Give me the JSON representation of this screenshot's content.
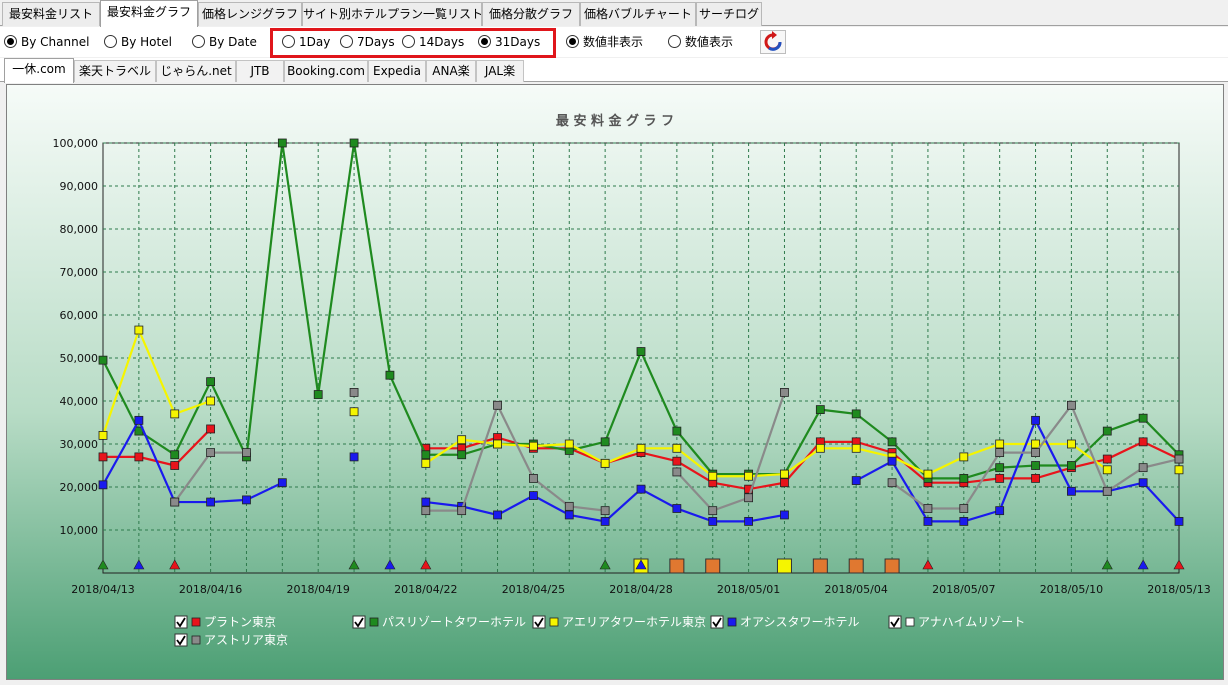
{
  "main_tabs": [
    {
      "label": "最安料金リスト",
      "active": false
    },
    {
      "label": "最安料金グラフ",
      "active": true
    },
    {
      "label": "価格レンジグラフ",
      "active": false
    },
    {
      "label": "サイト別ホテルプラン一覧リスト",
      "active": false
    },
    {
      "label": "価格分散グラフ",
      "active": false
    },
    {
      "label": "価格バブルチャート",
      "active": false
    },
    {
      "label": "サーチログ",
      "active": false
    }
  ],
  "view_mode": [
    {
      "label": "By Channel",
      "selected": true
    },
    {
      "label": "By Hotel",
      "selected": false
    },
    {
      "label": "By Date",
      "selected": false
    }
  ],
  "range": [
    {
      "label": "1Day",
      "selected": false
    },
    {
      "label": "7Days",
      "selected": false
    },
    {
      "label": "14Days",
      "selected": false
    },
    {
      "label": "31Days",
      "selected": true
    }
  ],
  "value_display": [
    {
      "label": "数値非表示",
      "selected": true
    },
    {
      "label": "数値表示",
      "selected": false
    }
  ],
  "channel_tabs": [
    {
      "label": "一休.com",
      "active": true
    },
    {
      "label": "楽天トラベル",
      "active": false
    },
    {
      "label": "じゃらん.net",
      "active": false
    },
    {
      "label": "JTB",
      "active": false
    },
    {
      "label": "Booking.com",
      "active": false
    },
    {
      "label": "Expedia",
      "active": false
    },
    {
      "label": "ANA楽",
      "active": false
    },
    {
      "label": "JAL楽",
      "active": false
    }
  ],
  "colors": {
    "red": "#e8141b",
    "green": "#1f8a1f",
    "yellow": "#f5f500",
    "blue": "#1a1aee",
    "gray": "#8a8a8a",
    "white": "#ffffff",
    "orange": "#e07830"
  },
  "chart_data": {
    "type": "line",
    "title": "最 安 料 金 グ ラ フ",
    "x_ticks": [
      "2018/04/13",
      "2018/04/16",
      "2018/04/19",
      "2018/04/22",
      "2018/04/25",
      "2018/04/28",
      "2018/05/01",
      "2018/05/04",
      "2018/05/07",
      "2018/05/10",
      "2018/05/13"
    ],
    "y_ticks": [
      "10,000",
      "20,000",
      "30,000",
      "40,000",
      "50,000",
      "60,000",
      "70,000",
      "80,000",
      "90,000",
      "100,000"
    ],
    "ylim": [
      0,
      100000
    ],
    "dates": [
      "04/13",
      "04/14",
      "04/15",
      "04/16",
      "04/17",
      "04/18",
      "04/19",
      "04/20",
      "04/21",
      "04/22",
      "04/23",
      "04/24",
      "04/25",
      "04/26",
      "04/27",
      "04/28",
      "04/29",
      "04/30",
      "05/01",
      "05/02",
      "05/03",
      "05/04",
      "05/05",
      "05/06",
      "05/07",
      "05/08",
      "05/09",
      "05/10",
      "05/11",
      "05/12",
      "05/13"
    ],
    "series": [
      {
        "name": "プラトン東京",
        "color": "red",
        "values": [
          27000,
          27000,
          25000,
          33500,
          null,
          null,
          null,
          null,
          null,
          29000,
          29000,
          31500,
          29000,
          29000,
          25500,
          28000,
          26000,
          21000,
          19500,
          21000,
          30500,
          30500,
          28000,
          21000,
          21000,
          22000,
          22000,
          24500,
          26500,
          30500,
          26500
        ]
      },
      {
        "name": "パスリゾートタワーホテル",
        "color": "green",
        "values": [
          49500,
          33000,
          27500,
          44500,
          27000,
          100000,
          41500,
          100000,
          46000,
          27500,
          27500,
          30000,
          30000,
          28500,
          30500,
          51500,
          33000,
          23000,
          23000,
          23000,
          38000,
          37000,
          30500,
          22000,
          22000,
          24500,
          25000,
          25000,
          33000,
          36000,
          27500
        ]
      },
      {
        "name": "アエリアタワーホテル東京",
        "color": "yellow",
        "values": [
          32000,
          56500,
          37000,
          40000,
          null,
          null,
          null,
          37500,
          null,
          25500,
          31000,
          30000,
          29500,
          30000,
          25500,
          29000,
          29000,
          22500,
          22500,
          23000,
          29000,
          29000,
          27000,
          23000,
          27000,
          30000,
          30000,
          30000,
          24000,
          null,
          24000
        ]
      },
      {
        "name": "オアシスタワーホテル",
        "color": "blue",
        "values": [
          20500,
          35500,
          16500,
          16500,
          17000,
          21000,
          null,
          27000,
          null,
          16500,
          15500,
          13500,
          18000,
          13500,
          12000,
          19500,
          15000,
          12000,
          12000,
          13500,
          null,
          21500,
          26000,
          12000,
          12000,
          14500,
          35500,
          19000,
          19000,
          21000,
          12000
        ]
      },
      {
        "name": "アナハイムリゾート",
        "color": "white",
        "values": [
          null,
          null,
          null,
          null,
          null,
          null,
          null,
          null,
          null,
          null,
          null,
          null,
          null,
          null,
          null,
          null,
          null,
          null,
          null,
          null,
          null,
          null,
          null,
          null,
          null,
          null,
          null,
          null,
          null,
          null,
          null
        ]
      },
      {
        "name": "アストリア東京",
        "color": "gray",
        "values": [
          null,
          null,
          16500,
          28000,
          28000,
          null,
          null,
          42000,
          null,
          14500,
          14500,
          39000,
          22000,
          15500,
          14500,
          null,
          23500,
          14500,
          17500,
          42000,
          null,
          null,
          21000,
          15000,
          15000,
          28000,
          28000,
          39000,
          19000,
          24500,
          26500
        ]
      }
    ],
    "bottom_markers": [
      {
        "date": "04/13",
        "shape": "triangle",
        "color": "green"
      },
      {
        "date": "04/14",
        "shape": "triangle",
        "color": "blue"
      },
      {
        "date": "04/15",
        "shape": "triangle",
        "color": "red"
      },
      {
        "date": "04/20",
        "shape": "triangle",
        "color": "green"
      },
      {
        "date": "04/21",
        "shape": "triangle",
        "color": "blue"
      },
      {
        "date": "04/22",
        "shape": "triangle",
        "color": "red"
      },
      {
        "date": "04/27",
        "shape": "triangle",
        "color": "green"
      },
      {
        "date": "04/28",
        "shape": "square",
        "color": "yellow"
      },
      {
        "date": "04/28",
        "shape": "triangle",
        "color": "blue"
      },
      {
        "date": "04/29",
        "shape": "square",
        "color": "orange"
      },
      {
        "date": "04/30",
        "shape": "square",
        "color": "orange"
      },
      {
        "date": "05/02",
        "shape": "square",
        "color": "yellow"
      },
      {
        "date": "05/03",
        "shape": "square",
        "color": "orange"
      },
      {
        "date": "05/04",
        "shape": "square",
        "color": "orange"
      },
      {
        "date": "05/05",
        "shape": "square",
        "color": "orange"
      },
      {
        "date": "05/06",
        "shape": "triangle",
        "color": "red"
      },
      {
        "date": "05/11",
        "shape": "triangle",
        "color": "green"
      },
      {
        "date": "05/12",
        "shape": "triangle",
        "color": "blue"
      },
      {
        "date": "05/13",
        "shape": "triangle",
        "color": "red"
      }
    ],
    "legend": [
      {
        "name": "プラトン東京",
        "color": "red",
        "checked": true
      },
      {
        "name": "パスリゾートタワーホテル",
        "color": "green",
        "checked": true
      },
      {
        "name": "アエリアタワーホテル東京",
        "color": "yellow",
        "checked": true
      },
      {
        "name": "オアシスタワーホテル",
        "color": "blue",
        "checked": true
      },
      {
        "name": "アナハイムリゾート",
        "color": "white",
        "checked": true
      },
      {
        "name": "アストリア東京",
        "color": "gray",
        "checked": true
      }
    ]
  }
}
